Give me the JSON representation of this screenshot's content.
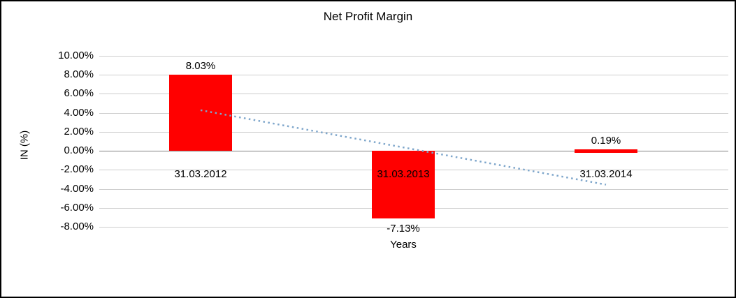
{
  "chart_data": {
    "type": "bar",
    "title": "Net Profit Margin",
    "xlabel": "Years",
    "ylabel": "IN (%)",
    "categories": [
      "31.03.2012",
      "31.03.2013",
      "31.03.2014"
    ],
    "values": [
      8.03,
      -7.13,
      0.19
    ],
    "data_labels": [
      "8.03%",
      "-7.13%",
      "0.19%"
    ],
    "ylim": [
      -8,
      10
    ],
    "y_axis": {
      "min": -8,
      "max": 10,
      "ticks": [
        {
          "value": 10,
          "label": "10.00%"
        },
        {
          "value": 8,
          "label": "8.00%"
        },
        {
          "value": 6,
          "label": "6.00%"
        },
        {
          "value": 4,
          "label": "4.00%"
        },
        {
          "value": 2,
          "label": "2.00%"
        },
        {
          "value": 0,
          "label": "0.00%"
        },
        {
          "value": -2,
          "label": "-2.00%"
        },
        {
          "value": -4,
          "label": "-4.00%"
        },
        {
          "value": -6,
          "label": "-6.00%"
        },
        {
          "value": -8,
          "label": "-8.00%"
        }
      ]
    },
    "grid": true,
    "legend": "none",
    "bar_color": "#FF0000",
    "trendline": {
      "type": "linear",
      "line_style": "dotted",
      "color": "#7EA6CB",
      "start_value": 4.28,
      "end_value": -3.56
    }
  },
  "frame": {
    "border_color": "#000000",
    "background": "#FFFFFF"
  }
}
